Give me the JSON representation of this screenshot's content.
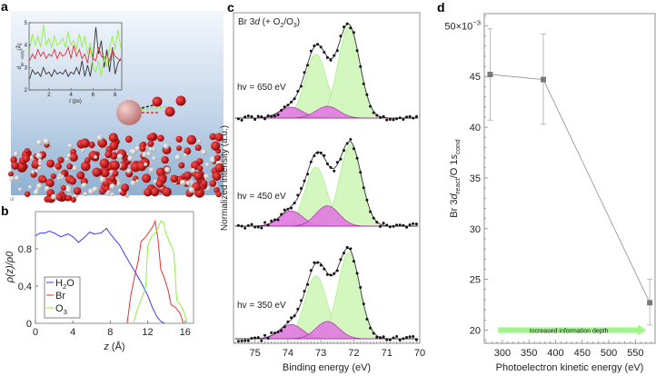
{
  "panel_labels": {
    "a": "a",
    "b": "b",
    "c": "c",
    "d": "d"
  },
  "colors": {
    "h2o": "#3b3bf0",
    "br": "#e53030",
    "o3": "#8ef040",
    "green_fill": "#d4f7bf",
    "green_line": "#a8ea8a",
    "magenta_fill": "#e07be0",
    "magenta_line": "#a020a0",
    "point": "#7a7a7a",
    "arrow": "#9ef58a"
  },
  "chart_data": [
    {
      "panel": "a",
      "type": "line",
      "title": "",
      "xlabel": "t (ps)",
      "ylabel_main": "d",
      "ylabel_sub": "Br···O(O)",
      "ylabel_unit": "(Å)",
      "xlim": [
        0.2,
        8.6
      ],
      "ylim": [
        2,
        5
      ],
      "xticks": [
        2,
        4,
        6,
        8
      ],
      "yticks": [
        2,
        3,
        4,
        5
      ],
      "x_start": 0.25,
      "x_step": 0.25,
      "series": [
        {
          "name": "black",
          "color": "#333333",
          "values": [
            2.5,
            2.9,
            2.7,
            2.8,
            2.6,
            3.0,
            2.7,
            2.8,
            2.6,
            2.9,
            2.7,
            2.8,
            2.7,
            2.9,
            2.6,
            2.8,
            2.7,
            3.0,
            2.7,
            3.3,
            2.6,
            3.1,
            2.6,
            3.5,
            4.8,
            3.6,
            4.2,
            3.0,
            3.8,
            2.8,
            3.9,
            2.7,
            3.2,
            3.4
          ]
        },
        {
          "name": "red",
          "color": "#e53030",
          "values": [
            3.3,
            3.6,
            3.4,
            3.8,
            3.5,
            3.7,
            3.4,
            3.6,
            3.5,
            3.8,
            3.4,
            3.7,
            3.5,
            3.6,
            3.9,
            3.4,
            4.0,
            3.5,
            3.8,
            3.4,
            3.6,
            3.2,
            3.9,
            3.4,
            3.3,
            3.9,
            3.5,
            3.4,
            3.6,
            3.3,
            3.8,
            3.5,
            3.4,
            3.3
          ]
        },
        {
          "name": "green",
          "color": "#8ef040",
          "values": [
            3.8,
            4.5,
            4.0,
            4.4,
            3.9,
            4.9,
            4.0,
            4.3,
            3.9,
            4.4,
            4.0,
            4.1,
            4.3,
            3.9,
            4.6,
            4.0,
            4.2,
            3.8,
            4.5,
            3.9,
            4.4,
            3.6,
            4.1,
            3.0,
            2.8,
            3.3,
            2.6,
            3.5,
            3.0,
            3.9,
            4.4,
            3.8,
            4.7,
            3.9
          ]
        }
      ]
    },
    {
      "panel": "b",
      "type": "line",
      "xlabel": "z (Å)",
      "ylabel": "ρ(z)/ρ0",
      "xlim": [
        0,
        16.9
      ],
      "ylim": [
        0,
        1.2
      ],
      "xticks": [
        0,
        4,
        8,
        12,
        16
      ],
      "yticks": [
        0,
        0.4,
        0.8
      ],
      "legend_position": "bottom-left",
      "series": [
        {
          "name": "H2O",
          "label_main": "H",
          "label_sub": "2",
          "label_tail": "O",
          "color": "#3b3bf0",
          "points": [
            [
              0,
              0.94
            ],
            [
              0.5,
              0.97
            ],
            [
              1,
              0.97
            ],
            [
              1.5,
              0.99
            ],
            [
              2,
              0.97
            ],
            [
              2.7,
              0.93
            ],
            [
              3.5,
              0.96
            ],
            [
              4,
              0.93
            ],
            [
              4.6,
              0.87
            ],
            [
              5.2,
              0.92
            ],
            [
              5.8,
              0.98
            ],
            [
              6.3,
              0.96
            ],
            [
              7,
              0.97
            ],
            [
              7.6,
              1.02
            ],
            [
              8,
              0.96
            ],
            [
              8.5,
              0.9
            ],
            [
              9,
              0.84
            ],
            [
              9.5,
              0.75
            ],
            [
              10,
              0.66
            ],
            [
              10.5,
              0.58
            ],
            [
              11,
              0.49
            ],
            [
              11.5,
              0.4
            ],
            [
              12,
              0.3
            ],
            [
              12.5,
              0.17
            ],
            [
              13,
              0.07
            ],
            [
              13.4,
              0.02
            ],
            [
              13.8,
              0
            ]
          ]
        },
        {
          "name": "Br",
          "label_main": "Br",
          "label_sub": "",
          "label_tail": "",
          "color": "#e53030",
          "points": [
            [
              9.8,
              0
            ],
            [
              10.2,
              0.3
            ],
            [
              10.6,
              0.5
            ],
            [
              11,
              0.68
            ],
            [
              11.3,
              0.88
            ],
            [
              11.8,
              0.93
            ],
            [
              12.3,
              1.0
            ],
            [
              12.6,
              1.05
            ],
            [
              12.8,
              1.1
            ],
            [
              13.1,
              0.9
            ],
            [
              13.4,
              0.58
            ],
            [
              13.8,
              0.48
            ],
            [
              14.2,
              0.35
            ],
            [
              14.5,
              0.2
            ],
            [
              15,
              0.17
            ],
            [
              15.5,
              0.1
            ],
            [
              15.8,
              0
            ]
          ]
        },
        {
          "name": "O3",
          "label_main": "O",
          "label_sub": "3",
          "label_tail": "",
          "color": "#8ef040",
          "points": [
            [
              10.5,
              0
            ],
            [
              10.9,
              0.15
            ],
            [
              11.4,
              0.28
            ],
            [
              11.8,
              0.4
            ],
            [
              12,
              0.83
            ],
            [
              12.4,
              0.93
            ],
            [
              12.9,
              0.98
            ],
            [
              13.2,
              1.05
            ],
            [
              13.4,
              1.1
            ],
            [
              13.7,
              1.08
            ],
            [
              14.0,
              0.95
            ],
            [
              14.4,
              0.86
            ],
            [
              14.8,
              0.76
            ],
            [
              15.1,
              0.25
            ],
            [
              15.5,
              0.2
            ],
            [
              15.9,
              0.12
            ],
            [
              16.2,
              0
            ]
          ]
        }
      ]
    },
    {
      "panel": "c",
      "type": "line",
      "title_main": "Br 3",
      "title_italic": "d",
      "title_rest": " (+ O",
      "title_sub1": "2",
      "title_mid": "/O",
      "title_sub2": "3",
      "title_end": ")",
      "xlabel": "Binding energy (eV)",
      "ylabel": "Normalized intensity (a.u.)",
      "xlim": [
        75.65,
        70.0
      ],
      "xticks": [
        75,
        74,
        73,
        72,
        71,
        70
      ],
      "spectra": [
        {
          "label": "hv = 650 eV",
          "components": [
            {
              "type": "green",
              "center": 72.15,
              "amp": 0.93,
              "sigma": 0.33
            },
            {
              "type": "green",
              "center": 73.15,
              "amp": 0.65,
              "sigma": 0.33
            },
            {
              "type": "magenta",
              "center": 73.9,
              "amp": 0.11,
              "sigma": 0.35
            },
            {
              "type": "magenta",
              "center": 72.8,
              "amp": 0.12,
              "sigma": 0.35
            }
          ]
        },
        {
          "label": "hv = 450 eV",
          "components": [
            {
              "type": "green",
              "center": 72.1,
              "amp": 0.8,
              "sigma": 0.33
            },
            {
              "type": "green",
              "center": 73.15,
              "amp": 0.58,
              "sigma": 0.33
            },
            {
              "type": "magenta",
              "center": 73.9,
              "amp": 0.15,
              "sigma": 0.35
            },
            {
              "type": "magenta",
              "center": 72.8,
              "amp": 0.2,
              "sigma": 0.35
            }
          ]
        },
        {
          "label": "hv = 350 eV",
          "components": [
            {
              "type": "green",
              "center": 72.15,
              "amp": 0.85,
              "sigma": 0.33
            },
            {
              "type": "green",
              "center": 73.15,
              "amp": 0.62,
              "sigma": 0.33
            },
            {
              "type": "magenta",
              "center": 73.9,
              "amp": 0.14,
              "sigma": 0.35
            },
            {
              "type": "magenta",
              "center": 72.8,
              "amp": 0.17,
              "sigma": 0.35
            }
          ]
        }
      ]
    },
    {
      "panel": "d",
      "type": "scatter",
      "xlabel": "Photoelectron kinetic energy (eV)",
      "ylabel_main": "Br 3",
      "ylabel_italic1": "d",
      "ylabel_sub1": "react",
      "ylabel_mid": "/O 1",
      "ylabel_italic2": "s",
      "ylabel_sub2": "cond",
      "xlim": [
        266,
        587
      ],
      "ylim": [
        18.7,
        51.2
      ],
      "xticks": [
        300,
        350,
        400,
        450,
        500,
        550
      ],
      "yticks": [
        20,
        25,
        30,
        35,
        40,
        45
      ],
      "ytick_top_label": "50×10",
      "ytick_top_exp": "−3",
      "x": [
        277,
        377,
        577
      ],
      "y": [
        45.2,
        44.7,
        22.7
      ],
      "yerr_low": [
        40.7,
        40.3,
        20.5
      ],
      "yerr_high": [
        49.7,
        49.2,
        25.0
      ],
      "annotation": "Increased information depth"
    }
  ]
}
